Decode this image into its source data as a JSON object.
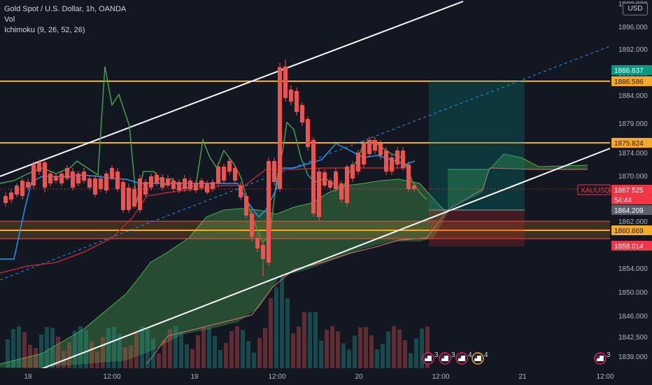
{
  "legend": {
    "symbol_line": "Gold Spot / U.S. Dollar, 1h, OANDA",
    "vol": "Vol",
    "ichimoku": "Ichimoku (9, 26, 52, 26)"
  },
  "currency_button": "USD",
  "colors": {
    "background": "#131722",
    "up": "#26a69a",
    "down": "#ef5350",
    "level": "#f7a928",
    "cloud": "#4caf50",
    "conversion": "#2196f3",
    "base": "#b22833",
    "lagging": "#43a047",
    "trendline": "#ffffff"
  },
  "price_axis": {
    "ticks": [
      "1900.000",
      "1896.000",
      "1892.000",
      "1888.000",
      "1884.000",
      "1879.000",
      "1874.000",
      "1870.000",
      "1866.000",
      "1862.000",
      "1858.000",
      "1854.000",
      "1850.000",
      "1846.000",
      "1842.500",
      "1839.000"
    ]
  },
  "price_labels": [
    {
      "text": "1886.637",
      "kind": "teal"
    },
    {
      "text": "1886.586",
      "kind": "orange"
    },
    {
      "text": "1875.824",
      "kind": "orange"
    },
    {
      "text": "XAUUSD",
      "kind": "ticker"
    },
    {
      "text": "1867.525",
      "kind": "red"
    },
    {
      "text": "54:44",
      "kind": "red"
    },
    {
      "text": "1864.209",
      "kind": "gray"
    },
    {
      "text": "1860.669",
      "kind": "orange"
    },
    {
      "text": "1858.014",
      "kind": "red"
    }
  ],
  "time_axis": {
    "ticks": [
      "18",
      "12:00",
      "19",
      "12:00",
      "20",
      "12:00",
      "21",
      "12:00"
    ]
  },
  "event_badges": [
    {
      "icon": "us-flag-icon",
      "count": "3"
    },
    {
      "icon": "us-flag-icon",
      "count": "3"
    },
    {
      "icon": "us-flag-icon",
      "count": "4"
    },
    {
      "icon": "us-flag-icon",
      "count": "4"
    },
    {
      "icon": "us-flag-icon",
      "count": "3"
    }
  ],
  "chart_data": {
    "type": "candlestick",
    "symbol": "XAUUSD",
    "timeframe": "1h",
    "x_range": [
      "2023-07-17 22:00",
      "2023-07-21 13:00"
    ],
    "y_range": [
      1838,
      1901
    ],
    "last_price": 1867.525,
    "levels": [
      1886.586,
      1875.824,
      1860.669
    ],
    "ohlc_approx": [
      {
        "t": "18 01:00",
        "o": 1866.0,
        "c": 1871.0
      },
      {
        "t": "18 06:00",
        "o": 1870.5,
        "c": 1867.0
      },
      {
        "t": "18 12:00",
        "o": 1868.0,
        "c": 1866.0
      },
      {
        "t": "18 15:00",
        "o": 1866.0,
        "c": 1862.5
      },
      {
        "t": "18 17:00",
        "o": 1863.0,
        "c": 1869.0
      },
      {
        "t": "18 22:00",
        "o": 1868.0,
        "c": 1869.0
      },
      {
        "t": "19 03:00",
        "o": 1869.0,
        "c": 1867.5
      },
      {
        "t": "19 06:00",
        "o": 1868.0,
        "c": 1864.0
      },
      {
        "t": "19 08:00",
        "o": 1864.0,
        "c": 1860.0
      },
      {
        "t": "19 10:00",
        "o": 1858.0,
        "c": 1855.0
      },
      {
        "t": "19 11:00",
        "o": 1855.0,
        "c": 1871.0
      },
      {
        "t": "19 12:00",
        "o": 1871.0,
        "c": 1889.0
      },
      {
        "t": "19 13:00",
        "o": 1889.0,
        "c": 1882.5
      },
      {
        "t": "19 16:00",
        "o": 1884.0,
        "c": 1877.0
      },
      {
        "t": "19 19:00",
        "o": 1877.0,
        "c": 1863.0
      },
      {
        "t": "19 21:00",
        "o": 1863.0,
        "c": 1870.0
      },
      {
        "t": "20 00:00",
        "o": 1869.0,
        "c": 1866.0
      },
      {
        "t": "20 03:00",
        "o": 1866.0,
        "c": 1871.0
      },
      {
        "t": "20 06:00",
        "o": 1873.0,
        "c": 1876.0
      },
      {
        "t": "20 08:00",
        "o": 1875.5,
        "c": 1871.0
      },
      {
        "t": "20 10:00",
        "o": 1874.5,
        "c": 1870.5
      },
      {
        "t": "20 11:00",
        "o": 1870.5,
        "c": 1867.5
      }
    ],
    "position_box": {
      "entry": 1864.209,
      "target": 1886.637,
      "stop": 1858.014
    }
  }
}
